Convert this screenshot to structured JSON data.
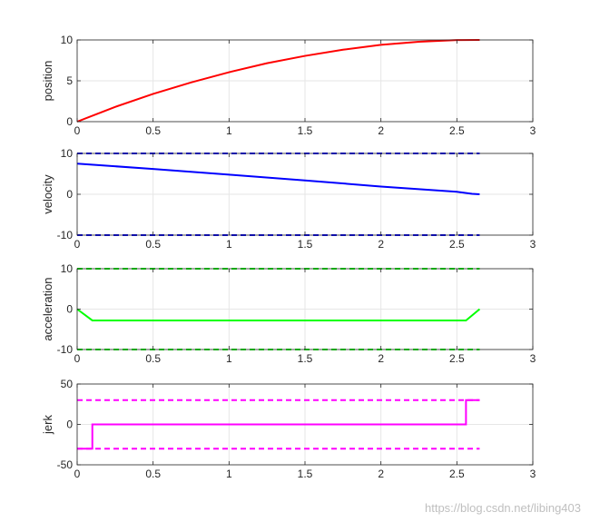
{
  "chart_data": [
    {
      "type": "line",
      "ylabel": "position",
      "xlim": [
        0,
        3
      ],
      "ylim": [
        0,
        10
      ],
      "xticks": [
        0,
        0.5,
        1,
        1.5,
        2,
        2.5,
        3
      ],
      "yticks": [
        0,
        5,
        10
      ],
      "grid": true,
      "series": [
        {
          "color": "#ff0000",
          "style": "solid",
          "x": [
            0,
            0.25,
            0.5,
            0.75,
            1.0,
            1.25,
            1.5,
            1.75,
            2.0,
            2.25,
            2.5,
            2.65
          ],
          "y": [
            0,
            1.8,
            3.4,
            4.8,
            6.05,
            7.15,
            8.05,
            8.8,
            9.4,
            9.78,
            9.98,
            10.0
          ]
        }
      ]
    },
    {
      "type": "line",
      "ylabel": "velocity",
      "xlim": [
        0,
        3
      ],
      "ylim": [
        -10,
        10
      ],
      "xticks": [
        0,
        0.5,
        1,
        1.5,
        2,
        2.5,
        3
      ],
      "yticks": [
        -10,
        0,
        10
      ],
      "grid": true,
      "series": [
        {
          "color": "#0000ff",
          "style": "solid",
          "x": [
            0,
            0.5,
            1.0,
            1.5,
            2.0,
            2.5,
            2.6,
            2.65
          ],
          "y": [
            7.5,
            6.2,
            4.8,
            3.4,
            1.9,
            0.6,
            0.1,
            0.0
          ]
        },
        {
          "color": "#0000ff",
          "style": "dashed",
          "x": [
            0,
            2.65
          ],
          "y": [
            10,
            10
          ]
        },
        {
          "color": "#0000ff",
          "style": "dashed",
          "x": [
            0,
            2.65
          ],
          "y": [
            -10,
            -10
          ]
        }
      ]
    },
    {
      "type": "line",
      "ylabel": "acceleration",
      "xlim": [
        0,
        3
      ],
      "ylim": [
        -10,
        10
      ],
      "xticks": [
        0,
        0.5,
        1,
        1.5,
        2,
        2.5,
        3
      ],
      "yticks": [
        -10,
        0,
        10
      ],
      "grid": true,
      "series": [
        {
          "color": "#00ff00",
          "style": "solid",
          "x": [
            0,
            0.1,
            2.56,
            2.65
          ],
          "y": [
            0,
            -2.8,
            -2.8,
            0
          ]
        },
        {
          "color": "#00ff00",
          "style": "dashed",
          "x": [
            0,
            2.65
          ],
          "y": [
            10,
            10
          ]
        },
        {
          "color": "#00ff00",
          "style": "dashed",
          "x": [
            0,
            2.65
          ],
          "y": [
            -10,
            -10
          ]
        }
      ]
    },
    {
      "type": "line",
      "ylabel": "jerk",
      "xlim": [
        0,
        3
      ],
      "ylim": [
        -50,
        50
      ],
      "xticks": [
        0,
        0.5,
        1,
        1.5,
        2,
        2.5,
        3
      ],
      "yticks": [
        -50,
        0,
        50
      ],
      "grid": true,
      "series": [
        {
          "color": "#ff00ff",
          "style": "solid",
          "x": [
            0,
            0.1,
            0.1,
            2.56,
            2.56,
            2.65
          ],
          "y": [
            -30,
            -30,
            0,
            0,
            30,
            30
          ]
        },
        {
          "color": "#ff00ff",
          "style": "dashed",
          "x": [
            0,
            2.65
          ],
          "y": [
            30,
            30
          ]
        },
        {
          "color": "#ff00ff",
          "style": "dashed",
          "x": [
            0,
            2.65
          ],
          "y": [
            -30,
            -30
          ]
        }
      ]
    }
  ],
  "watermark": "https://blog.csdn.net/libing403"
}
